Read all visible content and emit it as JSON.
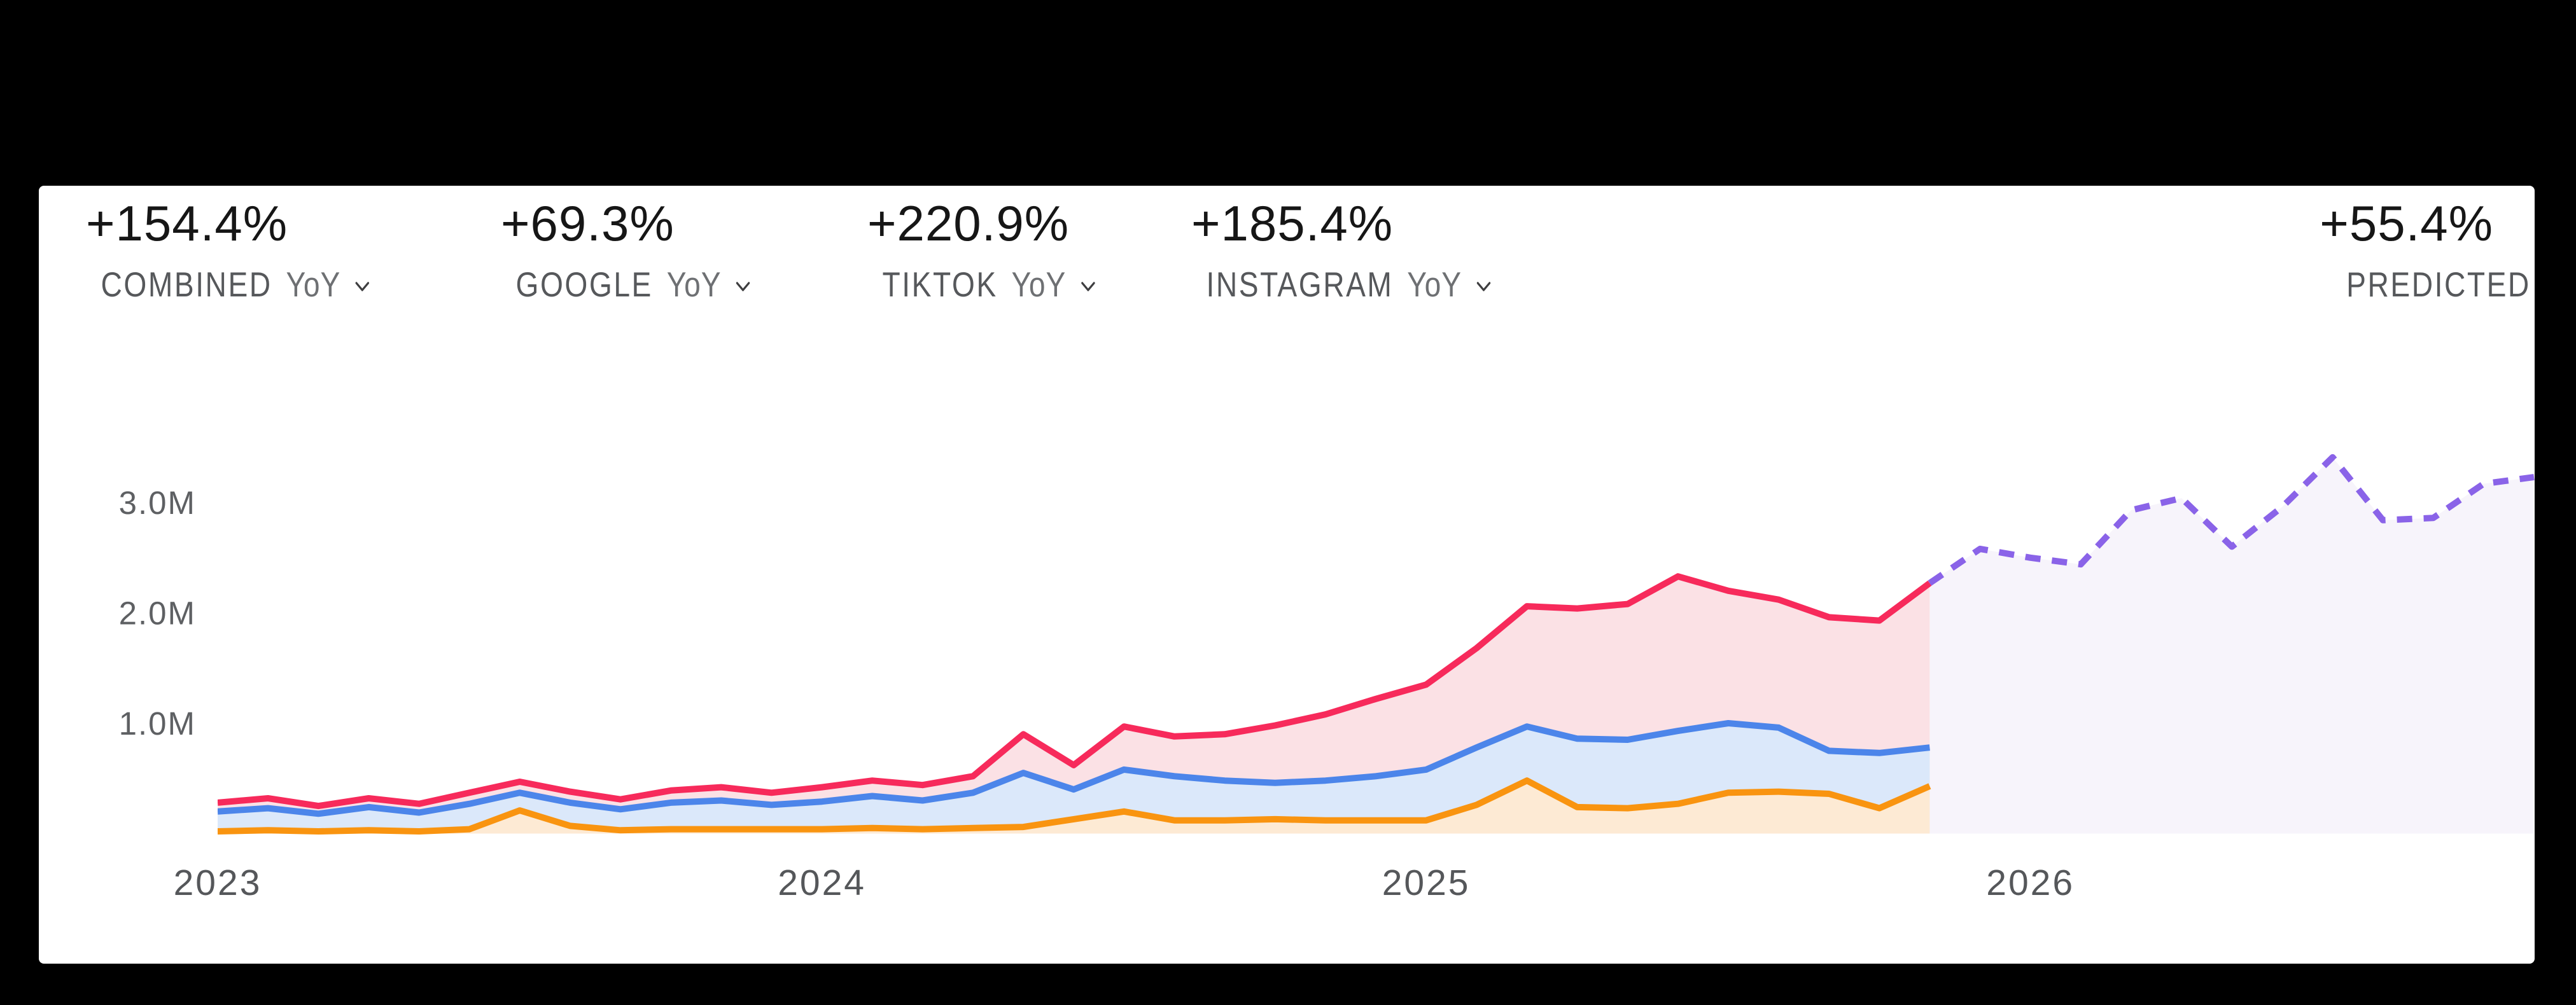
{
  "stats": [
    {
      "value": "+154.4%",
      "label": "COMBINED",
      "sub": "YoY",
      "has_dropdown": true
    },
    {
      "value": "+69.3%",
      "label": "GOOGLE",
      "sub": "YoY",
      "has_dropdown": true
    },
    {
      "value": "+220.9%",
      "label": "TIKTOK",
      "sub": "YoY",
      "has_dropdown": true
    },
    {
      "value": "+185.4%",
      "label": "INSTAGRAM",
      "sub": "YoY",
      "has_dropdown": true
    },
    {
      "value": "+55.4%",
      "label": "PREDICTED",
      "sub": "",
      "has_dropdown": false
    }
  ],
  "chart_data": {
    "type": "area",
    "title": "",
    "xlabel": "",
    "ylabel": "",
    "gridlines": false,
    "legend": "none",
    "x": {
      "unit": "month",
      "start": "2023-01",
      "months_total": 47,
      "tick_labels": [
        "2023",
        "2024",
        "2025",
        "2026"
      ],
      "tick_month_indices": [
        0,
        12,
        24,
        36
      ]
    },
    "y": {
      "unit": "millions",
      "range": [
        0,
        3.6
      ],
      "tick_labels": [
        "1.0M",
        "2.0M",
        "3.0M"
      ],
      "tick_values": [
        1,
        2,
        3
      ]
    },
    "series": [
      {
        "id": "rose-combined",
        "style": "solid",
        "color": "#F72A5B",
        "fill": "#FBE1E5",
        "start_month_index": 0,
        "values": [
          0.28,
          0.32,
          0.25,
          0.32,
          0.27,
          0.37,
          0.47,
          0.38,
          0.31,
          0.39,
          0.42,
          0.37,
          0.42,
          0.48,
          0.44,
          0.52,
          0.9,
          0.62,
          0.97,
          0.88,
          0.9,
          0.98,
          1.08,
          1.22,
          1.35,
          1.68,
          2.06,
          2.04,
          2.08,
          2.33,
          2.2,
          2.12,
          1.96,
          1.93,
          2.27
        ]
      },
      {
        "id": "blue-google",
        "style": "solid",
        "color": "#4C85EA",
        "fill": "#DBE8FA",
        "start_month_index": 0,
        "values": [
          0.2,
          0.23,
          0.18,
          0.24,
          0.19,
          0.27,
          0.37,
          0.28,
          0.22,
          0.28,
          0.3,
          0.26,
          0.29,
          0.34,
          0.3,
          0.37,
          0.55,
          0.4,
          0.58,
          0.52,
          0.48,
          0.46,
          0.48,
          0.52,
          0.58,
          0.78,
          0.97,
          0.86,
          0.85,
          0.93,
          1.0,
          0.96,
          0.75,
          0.73,
          0.78
        ]
      },
      {
        "id": "orange-social",
        "style": "solid",
        "color": "#F99410",
        "fill": "#FDEAD4",
        "start_month_index": 0,
        "values": [
          0.02,
          0.03,
          0.02,
          0.03,
          0.02,
          0.04,
          0.21,
          0.07,
          0.03,
          0.04,
          0.04,
          0.04,
          0.04,
          0.05,
          0.04,
          0.05,
          0.06,
          0.13,
          0.2,
          0.12,
          0.12,
          0.13,
          0.12,
          0.12,
          0.12,
          0.26,
          0.48,
          0.24,
          0.23,
          0.27,
          0.37,
          0.38,
          0.36,
          0.23,
          0.43
        ]
      },
      {
        "id": "purple-predicted",
        "style": "dashed",
        "color": "#8A63E8",
        "fill": "#F7F4FB",
        "start_month_index": 34,
        "values": [
          2.27,
          2.58,
          2.5,
          2.44,
          2.93,
          3.04,
          2.6,
          2.96,
          3.41,
          2.84,
          2.86,
          3.17,
          3.23
        ]
      }
    ]
  }
}
